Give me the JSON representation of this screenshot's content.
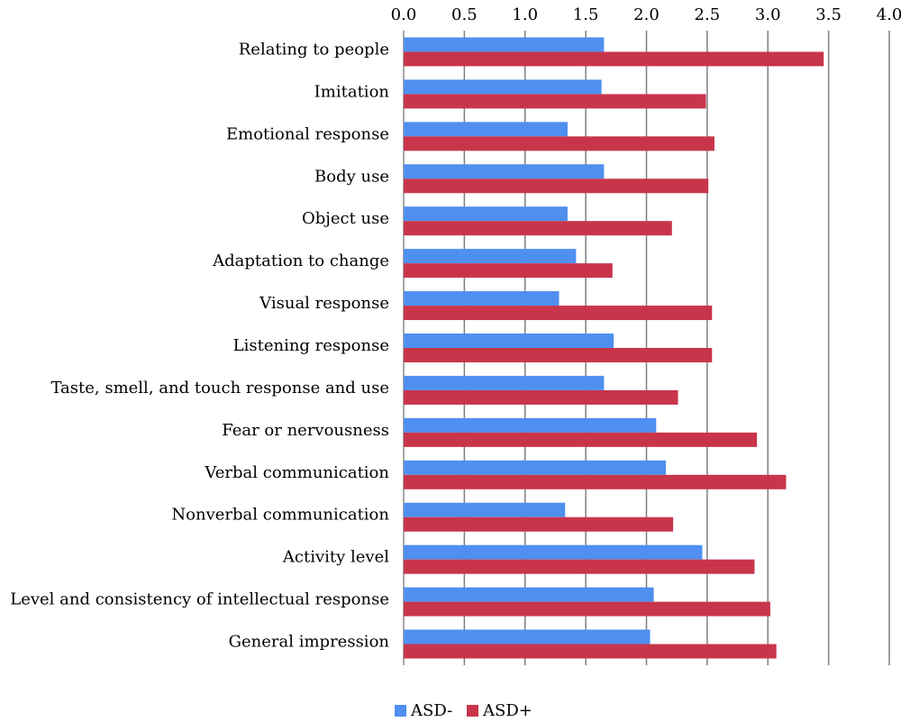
{
  "chart_data": {
    "type": "bar",
    "orientation": "horizontal",
    "title": "",
    "xlabel": "",
    "ylabel": "",
    "xlim": [
      0,
      4
    ],
    "x_ticks": [
      "0.0",
      "0.5",
      "1.0",
      "1.5",
      "2.0",
      "2.5",
      "3.0",
      "3.5",
      "4.0"
    ],
    "x_axis_position": "top",
    "grid": "vertical",
    "legend_position": "bottom",
    "categories": [
      "Relating to people",
      "Imitation",
      "Emotional response",
      "Body use",
      "Object use",
      "Adaptation to change",
      "Visual response",
      "Listening response",
      "Taste, smell, and touch response and use",
      "Fear or nervousness",
      "Verbal communication",
      "Nonverbal communication",
      "Activity level",
      "Level and consistency of intellectual response",
      "General impression"
    ],
    "series": [
      {
        "name": "ASD-",
        "color": "#4f8ff0",
        "values": [
          1.65,
          1.63,
          1.35,
          1.65,
          1.35,
          1.42,
          1.28,
          1.73,
          1.65,
          2.08,
          2.16,
          1.33,
          2.46,
          2.06,
          2.03
        ]
      },
      {
        "name": "ASD+",
        "color": "#c8354b",
        "values": [
          3.46,
          2.49,
          2.56,
          2.51,
          2.21,
          1.72,
          2.54,
          2.54,
          2.26,
          2.91,
          3.15,
          2.22,
          2.89,
          3.02,
          3.07
        ]
      }
    ]
  }
}
